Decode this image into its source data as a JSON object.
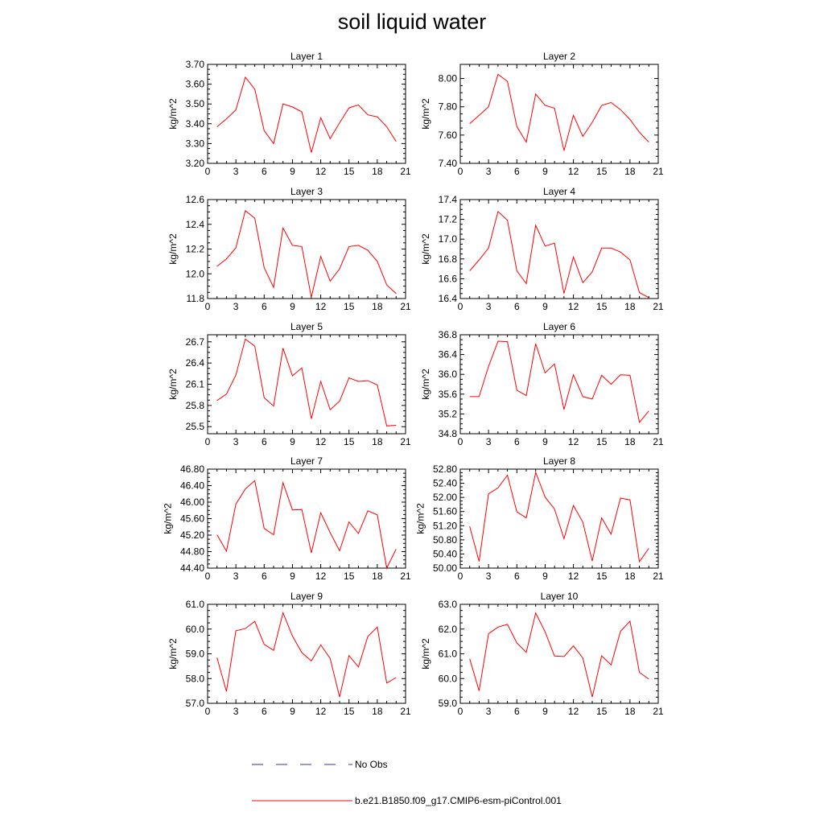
{
  "title": "soil liquid water",
  "legend": [
    {
      "label": "No Obs",
      "color": "#3030c0",
      "style": "dashed"
    },
    {
      "label": "b.e21.B1850.f09_g17.CMIP6-esm-piControl.001",
      "color": "#ff0000",
      "style": "solid"
    }
  ],
  "chart_data": [
    {
      "type": "line",
      "title": "Layer 1",
      "ylabel": "kg/m^2",
      "xlim": [
        0,
        21
      ],
      "xticks": [
        0,
        3,
        6,
        9,
        12,
        15,
        18,
        21
      ],
      "ylim": [
        3.2,
        3.7
      ],
      "yticks": [
        "3.20",
        "3.30",
        "3.40",
        "3.50",
        "3.60",
        "3.70"
      ],
      "x": [
        1,
        2,
        3,
        4,
        5,
        6,
        7,
        8,
        9,
        10,
        11,
        12,
        13,
        14,
        15,
        16,
        17,
        18,
        19,
        20
      ],
      "series": [
        {
          "name": "b.e21.B1850.f09_g17.CMIP6-esm-piControl.001",
          "color": "#ff0000",
          "values": [
            3.385,
            3.425,
            3.47,
            3.635,
            3.575,
            3.365,
            3.3,
            3.5,
            3.485,
            3.46,
            3.255,
            3.43,
            3.325,
            3.405,
            3.48,
            3.495,
            3.445,
            3.435,
            3.385,
            3.31
          ]
        }
      ]
    },
    {
      "type": "line",
      "title": "Layer 2",
      "ylabel": "kg/m^2",
      "xlim": [
        0,
        21
      ],
      "xticks": [
        0,
        3,
        6,
        9,
        12,
        15,
        18,
        21
      ],
      "ylim": [
        7.4,
        8.1
      ],
      "yticks": [
        "7.40",
        "7.60",
        "7.80",
        "8.00"
      ],
      "x": [
        1,
        2,
        3,
        4,
        5,
        6,
        7,
        8,
        9,
        10,
        11,
        12,
        13,
        14,
        15,
        16,
        17,
        18,
        19,
        20
      ],
      "series": [
        {
          "name": "b.e21.B1850.f09_g17.CMIP6-esm-piControl.001",
          "color": "#ff0000",
          "values": [
            7.68,
            7.74,
            7.8,
            8.03,
            7.98,
            7.66,
            7.55,
            7.89,
            7.81,
            7.79,
            7.49,
            7.74,
            7.59,
            7.69,
            7.81,
            7.83,
            7.78,
            7.71,
            7.62,
            7.55
          ]
        }
      ]
    },
    {
      "type": "line",
      "title": "Layer 3",
      "ylabel": "kg/m^2",
      "xlim": [
        0,
        21
      ],
      "xticks": [
        0,
        3,
        6,
        9,
        12,
        15,
        18,
        21
      ],
      "ylim": [
        11.8,
        12.6
      ],
      "yticks": [
        "11.8",
        "12.0",
        "12.2",
        "12.4",
        "12.6"
      ],
      "x": [
        1,
        2,
        3,
        4,
        5,
        6,
        7,
        8,
        9,
        10,
        11,
        12,
        13,
        14,
        15,
        16,
        17,
        18,
        19,
        20
      ],
      "series": [
        {
          "name": "b.e21.B1850.f09_g17.CMIP6-esm-piControl.001",
          "color": "#ff0000",
          "values": [
            12.06,
            12.12,
            12.21,
            12.51,
            12.45,
            12.05,
            11.89,
            12.37,
            12.23,
            12.22,
            11.81,
            12.14,
            11.94,
            12.04,
            12.22,
            12.23,
            12.19,
            12.1,
            11.91,
            11.84
          ]
        }
      ]
    },
    {
      "type": "line",
      "title": "Layer 4",
      "ylabel": "kg/m^2",
      "xlim": [
        0,
        21
      ],
      "xticks": [
        0,
        3,
        6,
        9,
        12,
        15,
        18,
        21
      ],
      "ylim": [
        16.4,
        17.4
      ],
      "yticks": [
        "16.4",
        "16.6",
        "16.8",
        "17.0",
        "17.2",
        "17.4"
      ],
      "x": [
        1,
        2,
        3,
        4,
        5,
        6,
        7,
        8,
        9,
        10,
        11,
        12,
        13,
        14,
        15,
        16,
        17,
        18,
        19,
        20
      ],
      "series": [
        {
          "name": "b.e21.B1850.f09_g17.CMIP6-esm-piControl.001",
          "color": "#ff0000",
          "values": [
            16.68,
            16.79,
            16.91,
            17.28,
            17.19,
            16.68,
            16.55,
            17.14,
            16.93,
            16.96,
            16.45,
            16.82,
            16.56,
            16.67,
            16.91,
            16.91,
            16.87,
            16.79,
            16.46,
            16.41
          ]
        }
      ]
    },
    {
      "type": "line",
      "title": "Layer 5",
      "ylabel": "kg/m^2",
      "xlim": [
        0,
        21
      ],
      "xticks": [
        0,
        3,
        6,
        9,
        12,
        15,
        18,
        21
      ],
      "ylim": [
        25.4,
        26.8
      ],
      "yticks": [
        "25.5",
        "25.8",
        "26.1",
        "26.4",
        "26.7"
      ],
      "x": [
        1,
        2,
        3,
        4,
        5,
        6,
        7,
        8,
        9,
        10,
        11,
        12,
        13,
        14,
        15,
        16,
        17,
        18,
        19,
        20
      ],
      "series": [
        {
          "name": "b.e21.B1850.f09_g17.CMIP6-esm-piControl.001",
          "color": "#ff0000",
          "values": [
            25.87,
            25.96,
            26.23,
            26.74,
            26.64,
            25.91,
            25.79,
            26.61,
            26.22,
            26.33,
            25.61,
            26.14,
            25.74,
            25.86,
            26.19,
            26.14,
            26.15,
            26.09,
            25.51,
            25.52
          ]
        }
      ]
    },
    {
      "type": "line",
      "title": "Layer 6",
      "ylabel": "kg/m^2",
      "xlim": [
        0,
        21
      ],
      "xticks": [
        0,
        3,
        6,
        9,
        12,
        15,
        18,
        21
      ],
      "ylim": [
        34.8,
        36.8
      ],
      "yticks": [
        "34.8",
        "35.2",
        "35.6",
        "36.0",
        "36.4",
        "36.8"
      ],
      "x": [
        1,
        2,
        3,
        4,
        5,
        6,
        7,
        8,
        9,
        10,
        11,
        12,
        13,
        14,
        15,
        16,
        17,
        18,
        19,
        20
      ],
      "series": [
        {
          "name": "b.e21.B1850.f09_g17.CMIP6-esm-piControl.001",
          "color": "#ff0000",
          "values": [
            35.55,
            35.55,
            36.16,
            36.67,
            36.66,
            35.68,
            35.57,
            36.62,
            36.03,
            36.21,
            35.29,
            35.99,
            35.55,
            35.5,
            35.98,
            35.8,
            35.99,
            35.98,
            35.03,
            35.26
          ]
        }
      ]
    },
    {
      "type": "line",
      "title": "Layer 7",
      "ylabel": "kg/m^2",
      "xlim": [
        0,
        21
      ],
      "xticks": [
        0,
        3,
        6,
        9,
        12,
        15,
        18,
        21
      ],
      "ylim": [
        44.4,
        46.8
      ],
      "yticks": [
        "44.40",
        "44.80",
        "45.20",
        "45.60",
        "46.00",
        "46.40",
        "46.80"
      ],
      "x": [
        1,
        2,
        3,
        4,
        5,
        6,
        7,
        8,
        9,
        10,
        11,
        12,
        13,
        14,
        15,
        16,
        17,
        18,
        19,
        20
      ],
      "series": [
        {
          "name": "b.e21.B1850.f09_g17.CMIP6-esm-piControl.001",
          "color": "#ff0000",
          "values": [
            45.21,
            44.81,
            45.95,
            46.32,
            46.52,
            45.36,
            45.21,
            46.47,
            45.81,
            45.82,
            44.77,
            45.74,
            45.26,
            44.82,
            45.52,
            45.24,
            45.79,
            45.69,
            44.4,
            44.86
          ]
        }
      ]
    },
    {
      "type": "line",
      "title": "Layer 8",
      "ylabel": "kg/m^2",
      "xlim": [
        0,
        21
      ],
      "xticks": [
        0,
        3,
        6,
        9,
        12,
        15,
        18,
        21
      ],
      "ylim": [
        50.0,
        52.8
      ],
      "yticks": [
        "50.00",
        "50.40",
        "50.80",
        "51.20",
        "51.60",
        "52.00",
        "52.40",
        "52.80"
      ],
      "x": [
        1,
        2,
        3,
        4,
        5,
        6,
        7,
        8,
        9,
        10,
        11,
        12,
        13,
        14,
        15,
        16,
        17,
        18,
        19,
        20
      ],
      "series": [
        {
          "name": "b.e21.B1850.f09_g17.CMIP6-esm-piControl.001",
          "color": "#ff0000",
          "values": [
            51.18,
            50.19,
            52.1,
            52.27,
            52.63,
            51.59,
            51.42,
            52.71,
            52.01,
            51.67,
            50.83,
            51.77,
            51.3,
            50.2,
            51.42,
            50.96,
            51.98,
            51.93,
            50.18,
            50.56
          ]
        }
      ]
    },
    {
      "type": "line",
      "title": "Layer 9",
      "ylabel": "kg/m^2",
      "xlim": [
        0,
        21
      ],
      "xticks": [
        0,
        3,
        6,
        9,
        12,
        15,
        18,
        21
      ],
      "ylim": [
        57.0,
        61.0
      ],
      "yticks": [
        "57.0",
        "58.0",
        "59.0",
        "60.0",
        "61.0"
      ],
      "x": [
        1,
        2,
        3,
        4,
        5,
        6,
        7,
        8,
        9,
        10,
        11,
        12,
        13,
        14,
        15,
        16,
        17,
        18,
        19,
        20
      ],
      "series": [
        {
          "name": "b.e21.B1850.f09_g17.CMIP6-esm-piControl.001",
          "color": "#ff0000",
          "values": [
            58.84,
            57.48,
            59.93,
            60.02,
            60.31,
            59.38,
            59.14,
            60.66,
            59.72,
            59.05,
            58.71,
            59.36,
            58.81,
            57.25,
            58.93,
            58.47,
            59.7,
            60.08,
            57.82,
            58.04
          ]
        }
      ]
    },
    {
      "type": "line",
      "title": "Layer 10",
      "ylabel": "kg/m^2",
      "xlim": [
        0,
        21
      ],
      "xticks": [
        0,
        3,
        6,
        9,
        12,
        15,
        18,
        21
      ],
      "ylim": [
        59.0,
        63.0
      ],
      "yticks": [
        "59.0",
        "60.0",
        "61.0",
        "62.0",
        "63.0"
      ],
      "x": [
        1,
        2,
        3,
        4,
        5,
        6,
        7,
        8,
        9,
        10,
        11,
        12,
        13,
        14,
        15,
        16,
        17,
        18,
        19,
        20
      ],
      "series": [
        {
          "name": "b.e21.B1850.f09_g17.CMIP6-esm-piControl.001",
          "color": "#ff0000",
          "values": [
            60.8,
            59.5,
            61.81,
            62.08,
            62.19,
            61.44,
            61.06,
            62.65,
            61.89,
            60.91,
            60.89,
            61.32,
            60.83,
            59.25,
            60.92,
            60.55,
            61.91,
            62.32,
            60.25,
            59.98
          ]
        }
      ]
    }
  ]
}
